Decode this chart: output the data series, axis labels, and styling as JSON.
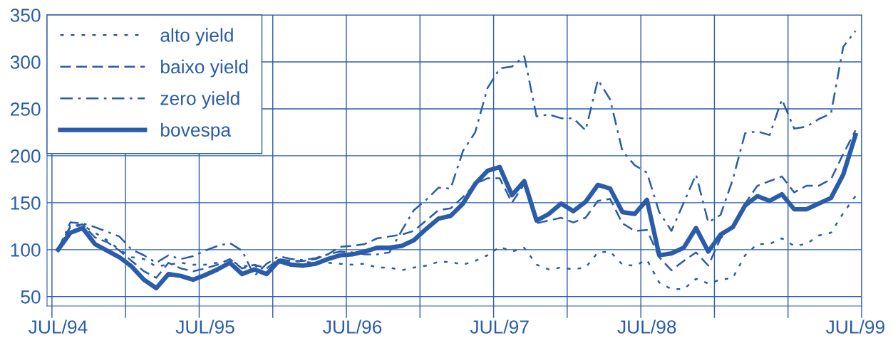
{
  "chart_data": {
    "type": "line",
    "categories": [
      "JUL/94",
      null,
      null,
      null,
      null,
      null,
      null,
      null,
      null,
      null,
      null,
      null,
      "JUL/95",
      null,
      null,
      null,
      null,
      null,
      null,
      null,
      null,
      null,
      null,
      null,
      "JUL/96",
      null,
      null,
      null,
      null,
      null,
      null,
      null,
      null,
      null,
      null,
      null,
      "JUL/97",
      null,
      null,
      null,
      null,
      null,
      null,
      null,
      null,
      null,
      null,
      null,
      "JUL/98",
      null,
      null,
      null,
      null,
      null,
      null,
      null,
      null,
      null,
      null,
      null,
      null,
      null,
      null,
      null,
      null,
      "JUL/99"
    ],
    "series": [
      {
        "name": "alto yield",
        "color": "#2a5caa",
        "line_style": "dotted",
        "values": [
          100,
          124,
          126,
          118,
          110,
          100,
          92,
          90,
          82,
          84,
          86,
          84,
          84,
          86,
          89,
          82,
          84,
          72,
          88,
          88,
          87,
          86,
          86,
          85,
          84,
          85,
          81,
          81,
          78,
          81,
          83,
          87,
          87,
          84,
          88,
          94,
          103,
          98,
          102,
          84,
          79,
          81,
          79,
          81,
          97,
          98,
          84,
          83,
          89,
          65,
          58,
          58,
          69,
          64,
          68,
          70,
          94,
          106,
          106,
          112,
          104,
          106,
          115,
          118,
          139,
          157
        ]
      },
      {
        "name": "baixo yield",
        "color": "#2a5caa",
        "line_style": "dashed",
        "values": [
          100,
          125,
          127,
          113,
          108,
          99,
          88,
          77,
          70,
          86,
          80,
          77,
          80,
          84,
          90,
          80,
          84,
          80,
          90,
          88,
          88,
          90,
          95,
          103,
          104,
          106,
          112,
          114,
          116,
          120,
          131,
          142,
          144,
          156,
          170,
          176,
          176,
          150,
          170,
          128,
          131,
          134,
          129,
          134,
          152,
          154,
          128,
          120,
          121,
          92,
          78,
          88,
          97,
          83,
          112,
          125,
          149,
          168,
          173,
          178,
          161,
          168,
          168,
          175,
          202,
          227
        ]
      },
      {
        "name": "zero yield",
        "color": "#2a5caa",
        "line_style": "dashdot",
        "values": [
          100,
          129,
          128,
          124,
          119,
          114,
          100,
          94,
          86,
          94,
          90,
          93,
          99,
          104,
          107,
          99,
          72,
          85,
          93,
          90,
          89,
          91,
          95,
          98,
          97,
          95,
          95,
          97,
          120,
          142,
          153,
          166,
          165,
          205,
          225,
          272,
          293,
          295,
          306,
          242,
          244,
          240,
          240,
          227,
          281,
          260,
          205,
          190,
          182,
          140,
          120,
          150,
          180,
          129,
          137,
          175,
          224,
          226,
          222,
          260,
          229,
          231,
          239,
          245,
          316,
          333
        ]
      },
      {
        "name": "bovespa",
        "color": "#2a5caa",
        "line_style": "solid",
        "values": [
          100,
          118,
          123,
          106,
          99,
          92,
          82,
          68,
          59,
          74,
          72,
          68,
          73,
          79,
          86,
          74,
          79,
          74,
          88,
          84,
          83,
          85,
          90,
          94,
          95,
          98,
          102,
          102,
          104,
          110,
          122,
          133,
          136,
          149,
          170,
          184,
          188,
          158,
          173,
          131,
          138,
          149,
          141,
          151,
          169,
          165,
          140,
          138,
          153,
          94,
          96,
          102,
          123,
          98,
          116,
          124,
          147,
          157,
          152,
          159,
          143,
          143,
          149,
          155,
          180,
          222
        ]
      }
    ],
    "ylim": [
      40,
      350
    ],
    "yticks": [
      50,
      100,
      150,
      200,
      250,
      300,
      350
    ],
    "grid": true,
    "legend": "top left"
  }
}
